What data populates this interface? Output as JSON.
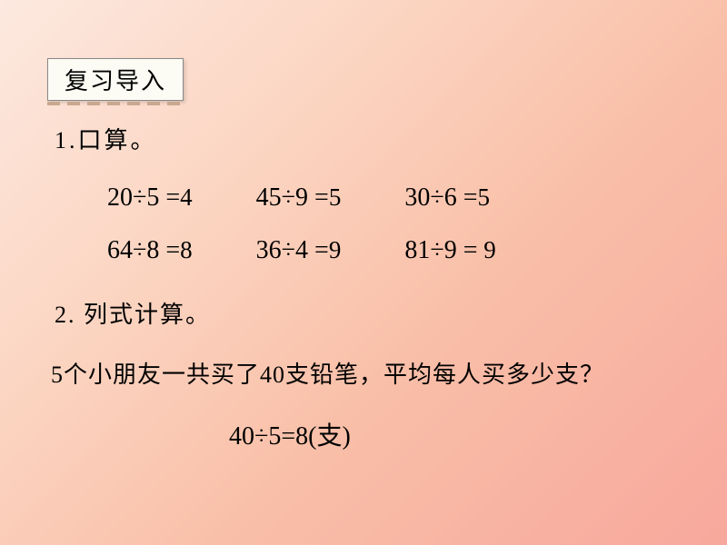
{
  "header": {
    "title": "复习导入"
  },
  "section1": {
    "title": "1.口算。",
    "row1": [
      {
        "lhs": "20÷5 =",
        "rhs": "4"
      },
      {
        "lhs": "45÷9 =",
        "rhs": "5"
      },
      {
        "lhs": "30÷6 =",
        "rhs": "5"
      }
    ],
    "row2": [
      {
        "lhs": "64÷8 =",
        "rhs": "8"
      },
      {
        "lhs": "36÷4 =",
        "rhs": "9"
      },
      {
        "lhs": "81÷9 =",
        "rhs": " 9"
      }
    ]
  },
  "section2": {
    "title": "2. 列式计算。",
    "problem_prefix": "5",
    "problem_mid1": "个小朋友一共买了",
    "problem_num2": "40",
    "problem_mid2": "支铅笔，平均每人买多少支？",
    "answer_lhs": "40÷5=",
    "answer_rhs": "8",
    "answer_unit": "(支)"
  },
  "styling": {
    "background_gradient_start": "#fde9e0",
    "background_gradient_end": "#f7a89c",
    "header_box_bg": "#fcfcf4",
    "header_box_border": "#888888",
    "text_color": "#000000",
    "dash_color": "#c9a890",
    "font_family_cjk": "KaiTi",
    "font_family_math": "Times New Roman",
    "header_fontsize": 26,
    "equation_fontsize": 28,
    "body_fontsize": 26
  }
}
